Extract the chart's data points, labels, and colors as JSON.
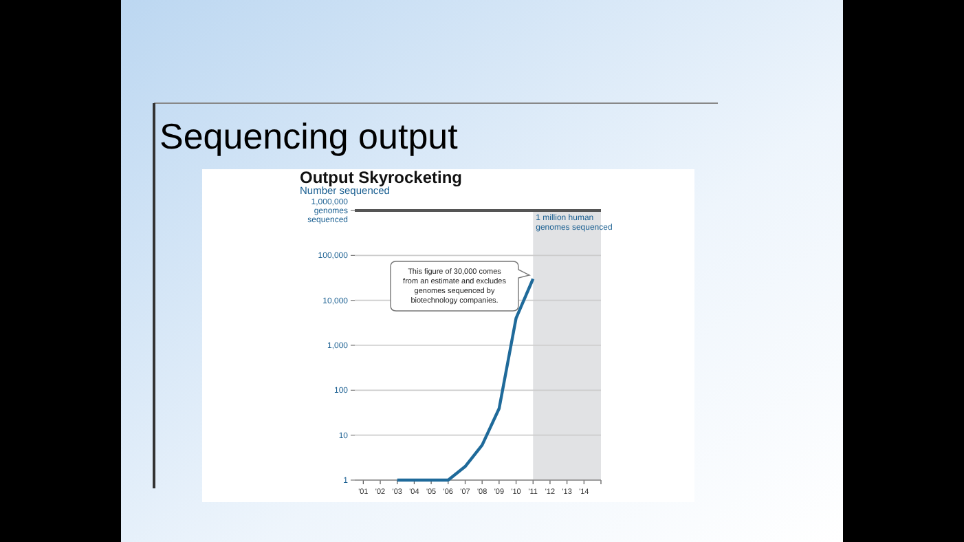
{
  "chart_data": {
    "type": "line",
    "title": "Sequencing output",
    "subtitle": "Output Skyrocketing",
    "ylabel": "Number sequenced",
    "log": "y",
    "x": [
      2003,
      2006,
      2007,
      2008,
      2009,
      2010,
      2011
    ],
    "series": [
      {
        "color": "#1f6a9a",
        "values": [
          1,
          1,
          2,
          6,
          39,
          4000,
          30000
        ]
      }
    ],
    "xlim": [
      2000.5,
      2015
    ],
    "xticks": [
      {
        "value": 2001,
        "label": "'01"
      },
      {
        "value": 2002,
        "label": "'02"
      },
      {
        "value": 2003,
        "label": "'03"
      },
      {
        "value": 2004,
        "label": "'04"
      },
      {
        "value": 2005,
        "label": "'05"
      },
      {
        "value": 2006,
        "label": "'06"
      },
      {
        "value": 2007,
        "label": "'07"
      },
      {
        "value": 2008,
        "label": "'08"
      },
      {
        "value": 2009,
        "label": "'09"
      },
      {
        "value": 2010,
        "label": "'10"
      },
      {
        "value": 2011,
        "label": "'11"
      },
      {
        "value": 2012,
        "label": "'12"
      },
      {
        "value": 2013,
        "label": "'13"
      },
      {
        "value": 2014,
        "label": "'14"
      },
      {
        "value": 2015,
        "label": null
      }
    ],
    "ylim": [
      1,
      1000000
    ],
    "yticks": [
      1,
      10,
      100,
      {
        "value": 1000,
        "label": "1,000"
      },
      {
        "value": 10000,
        "label": "10,000"
      },
      {
        "value": 100000,
        "label": "100,000"
      },
      {
        "value": 1000000,
        "label": "1,000,000 genomes sequenced"
      }
    ],
    "grid": "y",
    "bands": [
      {
        "axis": "x",
        "from": 2011,
        "to": 2015,
        "label": "1 million human genomes sequenced",
        "color": "#e1e2e4"
      }
    ],
    "annotations": [
      "This figure of 30,000 comes from an estimate and excludes genomes sequenced by biotechnology companies."
    ]
  }
}
